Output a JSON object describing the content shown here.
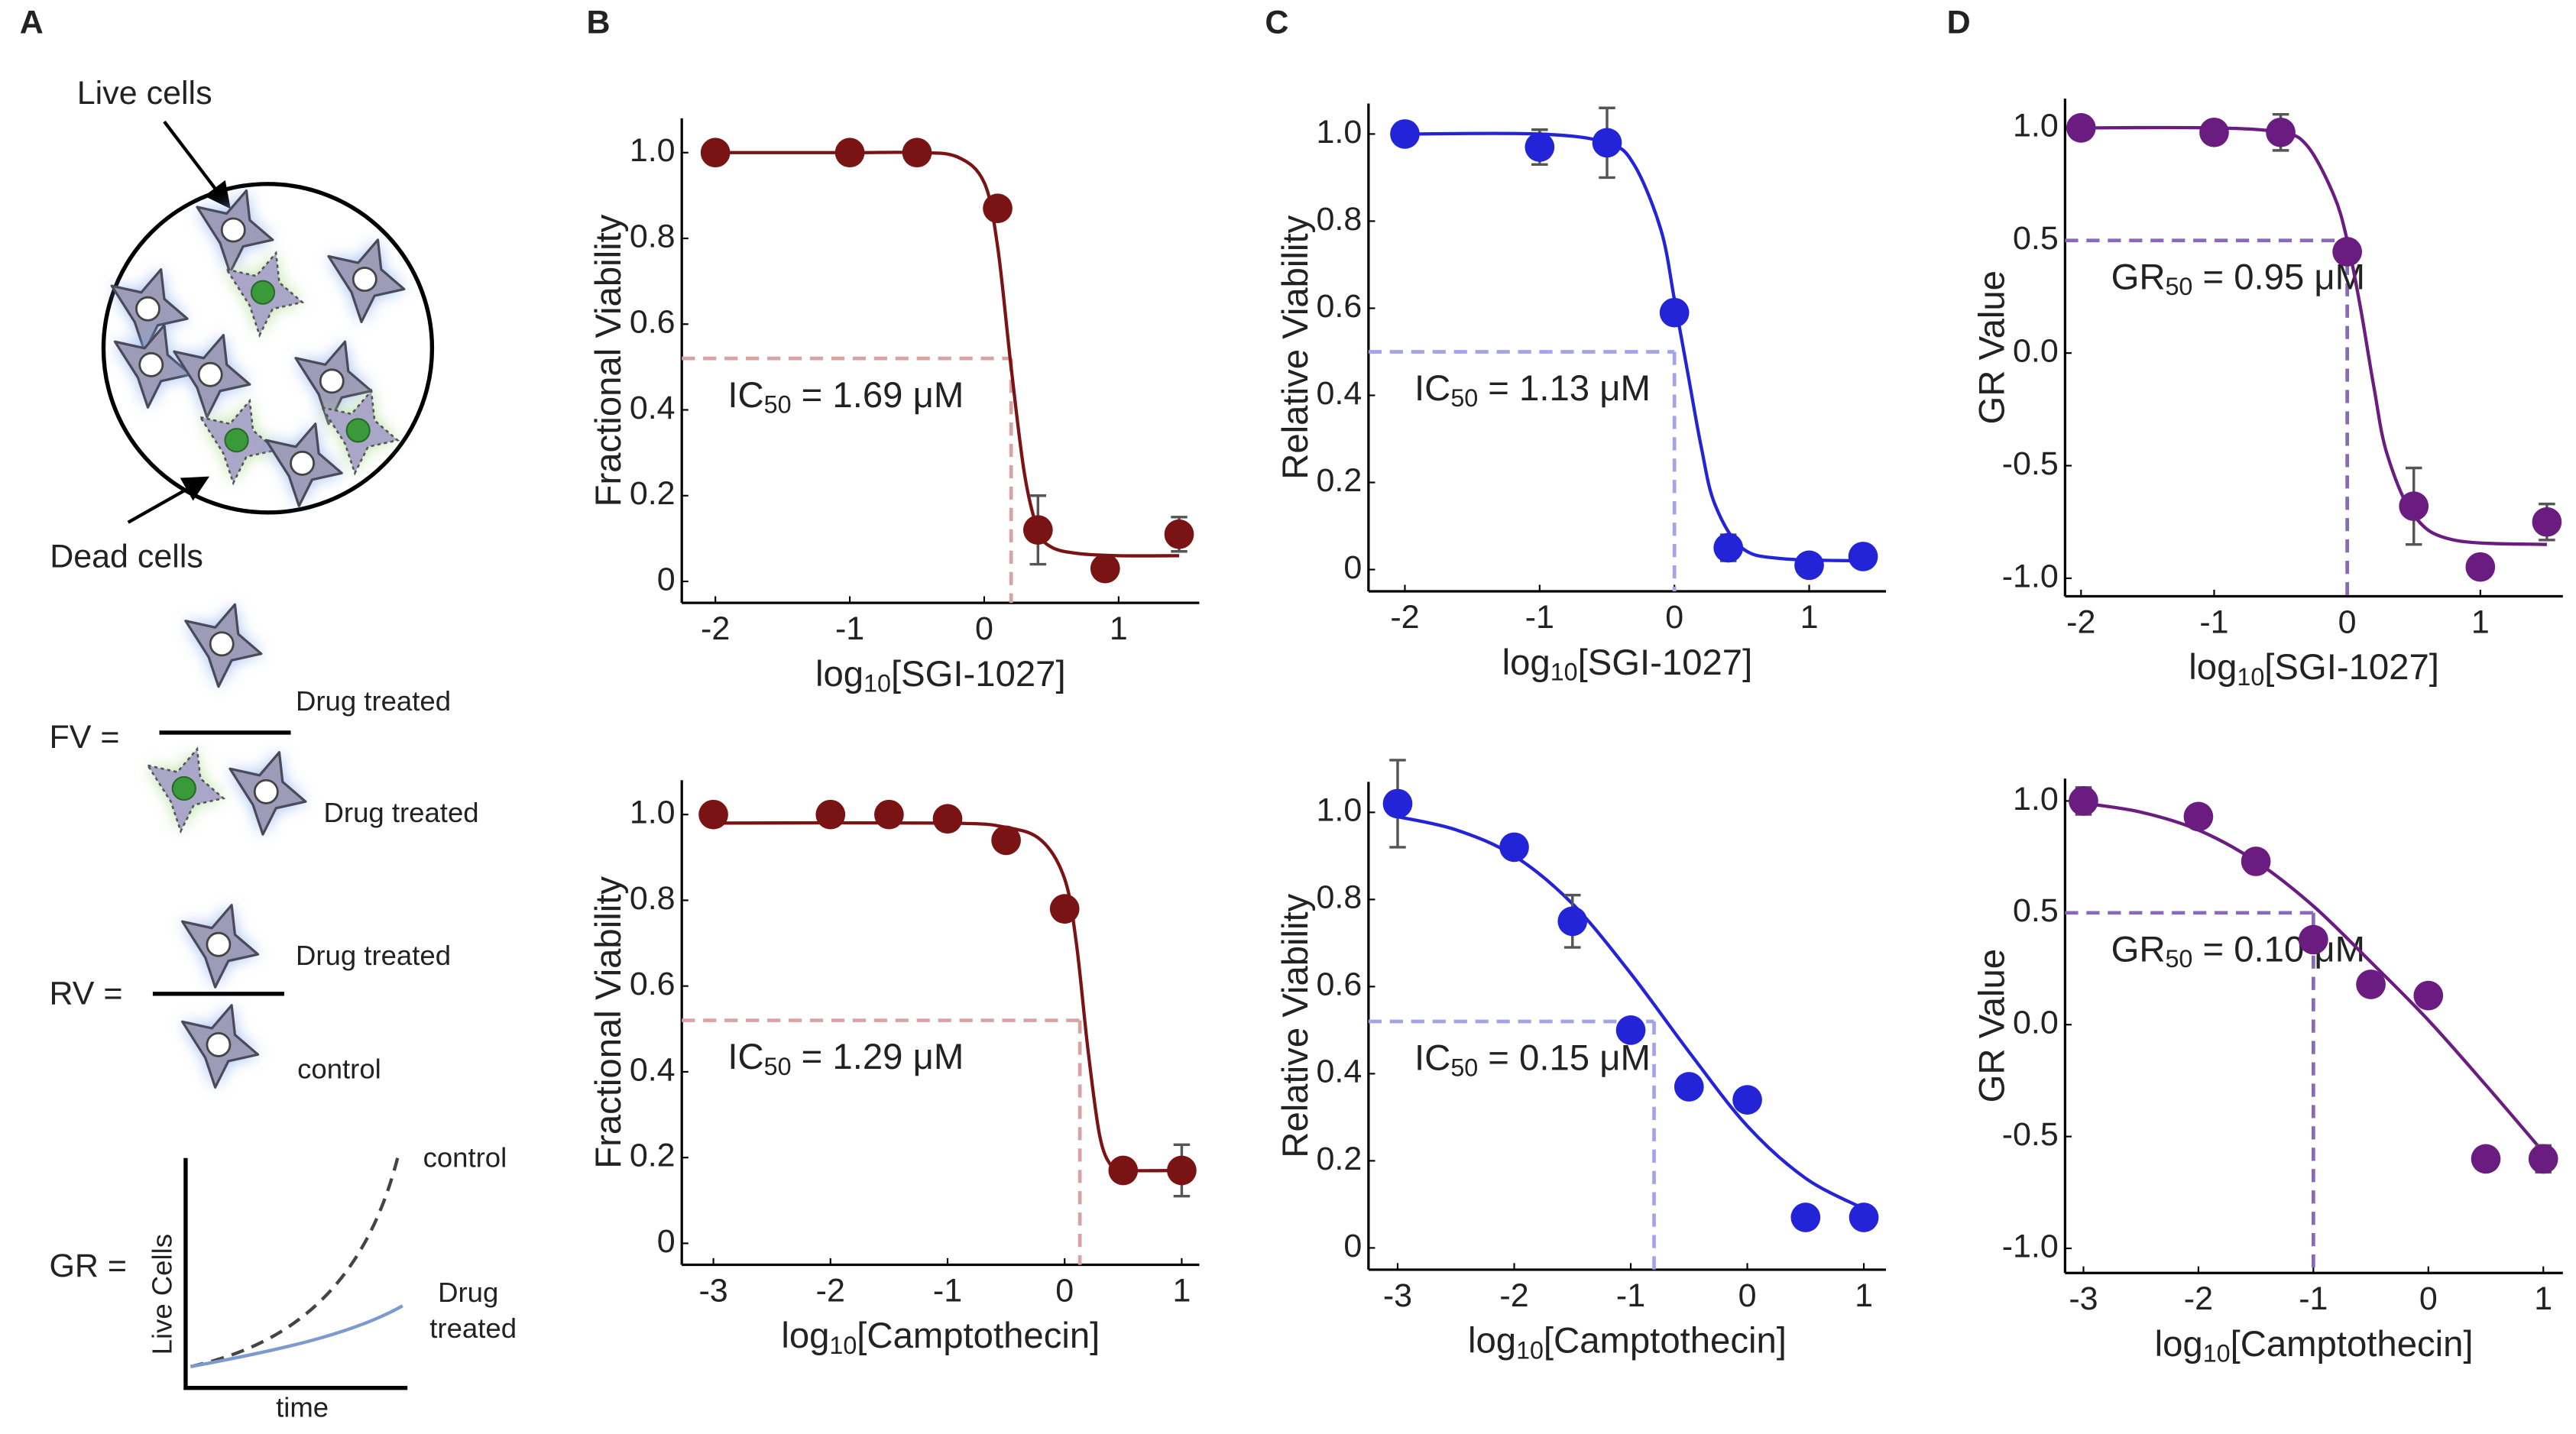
{
  "panel_labels": [
    "A",
    "B",
    "C",
    "D"
  ],
  "panel_a": {
    "live_cells": "Live cells",
    "dead_cells": "Dead cells",
    "fv": {
      "label": "FV =",
      "top": "Drug treated",
      "bottom": "Drug treated"
    },
    "rv": {
      "label": "RV =",
      "top": "Drug treated",
      "bottom": "control"
    },
    "gr": {
      "label": "GR =",
      "control": "control",
      "drug": "Drug",
      "treated": "treated",
      "ylabel": "Live Cells",
      "xlabel": "time"
    }
  },
  "chart_data": [
    {
      "type": "scatter",
      "color": "#7a1414",
      "ref_color": "#d9a3a3",
      "ylabel": "Fractional Viability",
      "xlabel": {
        "base": "log",
        "sub": "10",
        "rest": "[SGI-1027]"
      },
      "annotation": {
        "base": "IC",
        "sub": "50",
        "rest": " = 1.69 μM"
      },
      "xlim": [
        -2.25,
        1.6
      ],
      "ylim": [
        -0.05,
        1.08
      ],
      "xticks": [
        -2,
        -1,
        0,
        1
      ],
      "yticks": [
        0,
        0.2,
        0.4,
        0.6,
        0.8,
        {
          "value": 1,
          "label": "1.0"
        }
      ],
      "points": {
        "x": [
          -2,
          -1,
          -0.5,
          0.1,
          0.4,
          0.9,
          1.45
        ],
        "values": [
          1.0,
          1.0,
          1.0,
          0.87,
          0.12,
          0.03,
          0.11
        ],
        "errors": [
          null,
          null,
          null,
          null,
          0.08,
          null,
          0.04
        ]
      },
      "fit": {
        "x": [
          -2,
          -1,
          -0.5,
          -0.2,
          0,
          0.1,
          0.2,
          0.3,
          0.4,
          0.5,
          0.7,
          1,
          1.45
        ],
        "values": [
          1,
          1,
          1,
          0.99,
          0.93,
          0.78,
          0.5,
          0.25,
          0.12,
          0.08,
          0.065,
          0.06,
          0.06
        ]
      },
      "ref": {
        "x": 0.2,
        "y": 0.52
      }
    },
    {
      "type": "scatter",
      "color": "#2323d8",
      "ref_color": "#a3a3ea",
      "ylabel": "Relative Viability",
      "xlabel": {
        "base": "log",
        "sub": "10",
        "rest": "[SGI-1027]"
      },
      "annotation": {
        "base": "IC",
        "sub": "50",
        "rest": " = 1.13 μM"
      },
      "xlim": [
        -2.27,
        1.57
      ],
      "ylim": [
        -0.05,
        1.07
      ],
      "xticks": [
        -2,
        -1,
        0,
        1
      ],
      "yticks": [
        0,
        0.2,
        0.4,
        0.6,
        0.8,
        {
          "value": 1,
          "label": "1.0"
        }
      ],
      "points": {
        "x": [
          -2,
          -1,
          -0.5,
          0,
          0.4,
          1,
          1.4
        ],
        "values": [
          1.0,
          0.97,
          0.98,
          0.59,
          0.05,
          0.01,
          0.03
        ],
        "errors": [
          null,
          0.04,
          0.08,
          null,
          0.03,
          null,
          null
        ]
      },
      "fit": {
        "x": [
          -2,
          -1,
          -0.5,
          -0.3,
          -0.1,
          0,
          0.1,
          0.2,
          0.3,
          0.5,
          0.8,
          1.45
        ],
        "values": [
          1,
          1,
          0.98,
          0.93,
          0.78,
          0.62,
          0.45,
          0.28,
          0.15,
          0.05,
          0.025,
          0.02
        ]
      },
      "ref": {
        "x": 0,
        "y": 0.5
      }
    },
    {
      "type": "scatter",
      "color": "#6b1c80",
      "ref_color": "#8a6ab8",
      "ylabel": "GR Value",
      "xlabel": {
        "base": "log",
        "sub": "10",
        "rest": "[SGI-1027]"
      },
      "annotation": {
        "base": "GR",
        "sub": "50",
        "rest": " = 0.95 μM"
      },
      "xlim": [
        -2.12,
        1.62
      ],
      "ylim": [
        -1.08,
        1.13
      ],
      "xticks": [
        -2,
        -1,
        0,
        1
      ],
      "yticks": [
        {
          "value": -1,
          "label": "-1.0"
        },
        -0.5,
        {
          "value": 0,
          "label": "0.0"
        },
        0.5,
        {
          "value": 1,
          "label": "1.0"
        }
      ],
      "points": {
        "x": [
          -2,
          -1,
          -0.5,
          0,
          0.5,
          1,
          1.5
        ],
        "values": [
          1.0,
          0.98,
          0.98,
          0.45,
          -0.68,
          -0.95,
          -0.75
        ],
        "errors": [
          null,
          null,
          0.08,
          null,
          0.17,
          null,
          0.08
        ]
      },
      "fit": {
        "x": [
          -2,
          -1,
          -0.5,
          -0.3,
          -0.1,
          0,
          0.1,
          0.2,
          0.3,
          0.5,
          0.8,
          1.5
        ],
        "values": [
          1,
          1,
          0.98,
          0.92,
          0.7,
          0.5,
          0.2,
          -0.15,
          -0.45,
          -0.72,
          -0.83,
          -0.85
        ]
      },
      "ref": {
        "x": 0,
        "y": 0.5
      }
    },
    {
      "type": "scatter",
      "color": "#7a1414",
      "ref_color": "#d9a3a3",
      "ylabel": "Fractional Viability",
      "xlabel": {
        "base": "log",
        "sub": "10",
        "rest": "[Camptothecin]"
      },
      "annotation": {
        "base": "IC",
        "sub": "50",
        "rest": " = 1.29 μM"
      },
      "xlim": [
        -3.27,
        1.15
      ],
      "ylim": [
        -0.05,
        1.08
      ],
      "xticks": [
        -3,
        -2,
        -1,
        0,
        1
      ],
      "yticks": [
        0,
        0.2,
        0.4,
        0.6,
        0.8,
        {
          "value": 1,
          "label": "1.0"
        }
      ],
      "points": {
        "x": [
          -3,
          -2,
          -1.5,
          -1,
          -0.5,
          0,
          0.5,
          1
        ],
        "values": [
          1.0,
          1.0,
          1.0,
          0.99,
          0.94,
          0.78,
          0.17,
          0.17
        ],
        "errors": [
          null,
          null,
          null,
          null,
          null,
          null,
          null,
          0.06
        ]
      },
      "fit": {
        "x": [
          -3,
          -1,
          -0.5,
          -0.2,
          0,
          0.1,
          0.2,
          0.3,
          0.4,
          0.5,
          1
        ],
        "values": [
          0.98,
          0.98,
          0.97,
          0.94,
          0.85,
          0.7,
          0.45,
          0.25,
          0.18,
          0.17,
          0.17
        ]
      },
      "ref": {
        "x": 0.13,
        "y": 0.52
      }
    },
    {
      "type": "scatter",
      "color": "#2323d8",
      "ref_color": "#a3a3ea",
      "ylabel": "Relative Viability",
      "xlabel": {
        "base": "log",
        "sub": "10",
        "rest": "[Camptothecin]"
      },
      "annotation": {
        "base": "IC",
        "sub": "50",
        "rest": " = 0.15 μM"
      },
      "xlim": [
        -3.25,
        1.19
      ],
      "ylim": [
        -0.05,
        1.07
      ],
      "xticks": [
        -3,
        -2,
        -1,
        0,
        1
      ],
      "yticks": [
        0,
        0.2,
        0.4,
        0.6,
        0.8,
        {
          "value": 1,
          "label": "1.0"
        }
      ],
      "points": {
        "x": [
          -3,
          -2,
          -1.5,
          -1,
          -0.5,
          0,
          0.5,
          1
        ],
        "values": [
          1.02,
          0.92,
          0.75,
          0.5,
          0.37,
          0.34,
          0.07,
          0.07
        ],
        "errors": [
          0.1,
          null,
          0.06,
          null,
          null,
          null,
          null,
          null
        ]
      },
      "fit": {
        "x": [
          -3,
          -2.5,
          -2,
          -1.5,
          -1,
          -0.5,
          0,
          0.5,
          1
        ],
        "values": [
          0.99,
          0.96,
          0.9,
          0.79,
          0.63,
          0.45,
          0.28,
          0.16,
          0.09
        ]
      },
      "ref": {
        "x": -0.8,
        "y": 0.52
      }
    },
    {
      "type": "scatter",
      "color": "#6b1c80",
      "ref_color": "#8a6ab8",
      "ylabel": "GR Value",
      "xlabel": {
        "base": "log",
        "sub": "10",
        "rest": "[Camptothecin]"
      },
      "annotation": {
        "base": "GR",
        "sub": "50",
        "rest": " = 0.10 μM"
      },
      "xlim": [
        -3.16,
        1.17
      ],
      "ylim": [
        -1.11,
        1.1
      ],
      "xticks": [
        -3,
        -2,
        -1,
        0,
        1
      ],
      "yticks": [
        {
          "value": -1,
          "label": "-1.0"
        },
        -0.5,
        {
          "value": 0,
          "label": "0.0"
        },
        0.5,
        {
          "value": 1,
          "label": "1.0"
        }
      ],
      "points": {
        "x": [
          -3,
          -2,
          -1.5,
          -1,
          -0.5,
          0,
          0.5,
          1
        ],
        "values": [
          1.0,
          0.93,
          0.73,
          0.38,
          0.18,
          0.13,
          -0.6,
          -0.6
        ],
        "errors": [
          0.06,
          null,
          0.05,
          null,
          null,
          null,
          null,
          0.06
        ]
      },
      "fit": {
        "x": [
          -3,
          -2.5,
          -2,
          -1.5,
          -1,
          -0.5,
          0,
          0.5,
          1
        ],
        "values": [
          0.99,
          0.95,
          0.87,
          0.73,
          0.53,
          0.28,
          0.02,
          -0.27,
          -0.57
        ]
      },
      "ref": {
        "x": -1,
        "y": 0.5
      }
    }
  ]
}
